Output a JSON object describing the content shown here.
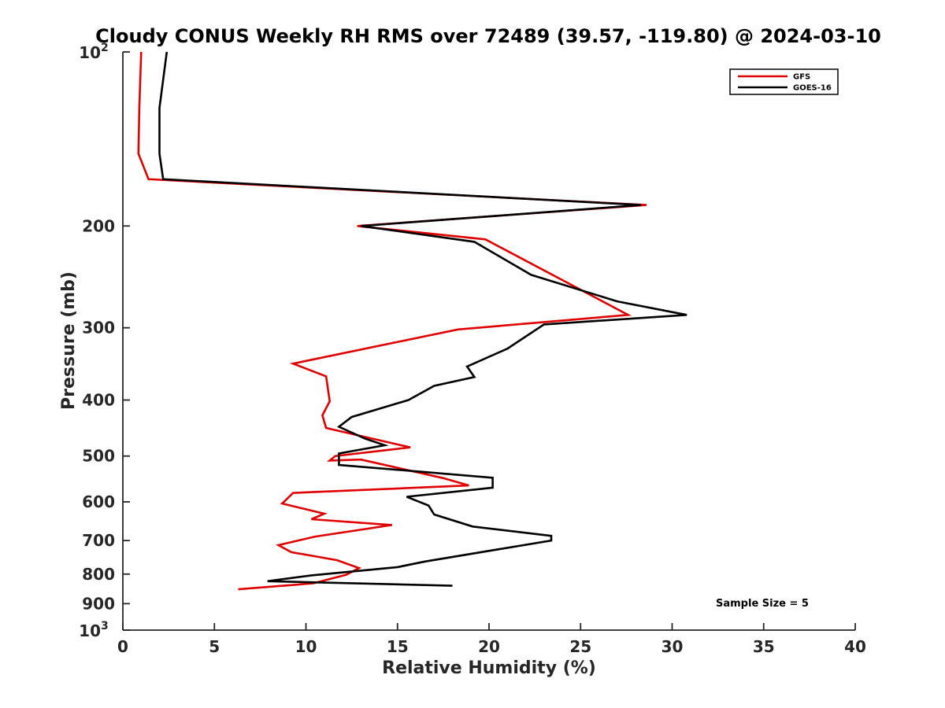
{
  "chart_data": {
    "type": "line",
    "title": "Cloudy CONUS Weekly RH RMS over 72489 (39.57, -119.80) @ 2024-03-10",
    "xlabel": "Relative Humidity (%)",
    "ylabel": "Pressure (mb)",
    "xlim": [
      0,
      40
    ],
    "ylim": [
      100,
      1000
    ],
    "y_scale": "log",
    "y_reversed": true,
    "grid": false,
    "x_ticks": [
      "0",
      "5",
      "10",
      "15",
      "20",
      "25",
      "30",
      "35",
      "40"
    ],
    "y_ticks": [
      {
        "value": 100,
        "base": "10",
        "exp": "2"
      },
      {
        "value": 200,
        "label": "200"
      },
      {
        "value": 300,
        "label": "300"
      },
      {
        "value": 400,
        "label": "400"
      },
      {
        "value": 500,
        "label": "500"
      },
      {
        "value": 600,
        "label": "600"
      },
      {
        "value": 700,
        "label": "700"
      },
      {
        "value": 800,
        "label": "800"
      },
      {
        "value": 900,
        "label": "900"
      },
      {
        "value": 1000,
        "base": "10",
        "exp": "3"
      }
    ],
    "legend_position": "top-right",
    "annotation": "Sample Size = 5",
    "series": [
      {
        "name": "GFS",
        "color": "#e00000",
        "points": [
          [
            1.0,
            100
          ],
          [
            0.9,
            125
          ],
          [
            0.85,
            150
          ],
          [
            1.4,
            166
          ],
          [
            28.6,
            184
          ],
          [
            12.8,
            200
          ],
          [
            19.8,
            211
          ],
          [
            27.6,
            285
          ],
          [
            18.3,
            302
          ],
          [
            9.3,
            346
          ],
          [
            11.1,
            364
          ],
          [
            11.3,
            402
          ],
          [
            10.9,
            425
          ],
          [
            11.1,
            447
          ],
          [
            15.7,
            483
          ],
          [
            11.6,
            500
          ],
          [
            11.3,
            509
          ],
          [
            13.0,
            507
          ],
          [
            17.5,
            546
          ],
          [
            18.9,
            562
          ],
          [
            9.3,
            579
          ],
          [
            8.7,
            604
          ],
          [
            11.0,
            629
          ],
          [
            10.3,
            643
          ],
          [
            14.7,
            658
          ],
          [
            10.5,
            689
          ],
          [
            8.5,
            713
          ],
          [
            9.2,
            733
          ],
          [
            11.7,
            757
          ],
          [
            12.9,
            781
          ],
          [
            12.2,
            802
          ],
          [
            10.4,
            830
          ],
          [
            6.3,
            850
          ]
        ]
      },
      {
        "name": "GOES-16",
        "color": "#000000",
        "points": [
          [
            2.4,
            100
          ],
          [
            2.0,
            125
          ],
          [
            2.0,
            150
          ],
          [
            2.2,
            166
          ],
          [
            28.3,
            184
          ],
          [
            13.0,
            200
          ],
          [
            19.2,
            213
          ],
          [
            22.3,
            243
          ],
          [
            27.0,
            270
          ],
          [
            30.8,
            285
          ],
          [
            23.0,
            296
          ],
          [
            21.0,
            326
          ],
          [
            18.8,
            350
          ],
          [
            19.2,
            365
          ],
          [
            17.0,
            378
          ],
          [
            15.6,
            400
          ],
          [
            12.5,
            428
          ],
          [
            11.8,
            445
          ],
          [
            13.2,
            466
          ],
          [
            14.3,
            479
          ],
          [
            11.8,
            495
          ],
          [
            11.8,
            518
          ],
          [
            20.2,
            545
          ],
          [
            20.2,
            567
          ],
          [
            15.5,
            588
          ],
          [
            16.7,
            609
          ],
          [
            17.0,
            631
          ],
          [
            19.1,
            662
          ],
          [
            23.4,
            687
          ],
          [
            23.4,
            700
          ],
          [
            16.5,
            761
          ],
          [
            15.0,
            778
          ],
          [
            10.3,
            804
          ],
          [
            7.9,
            823
          ],
          [
            18.0,
            838
          ]
        ]
      }
    ]
  }
}
